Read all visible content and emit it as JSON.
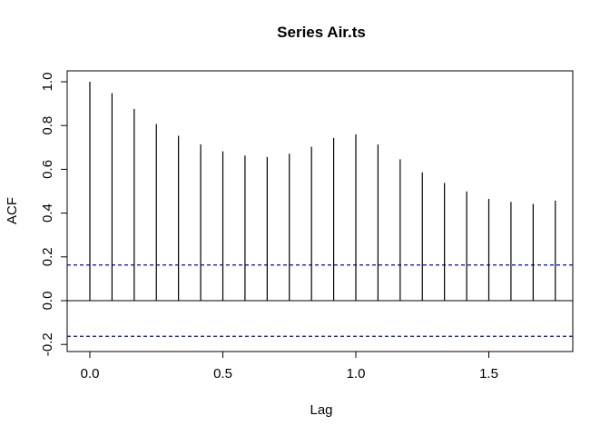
{
  "chart_data": {
    "type": "bar",
    "subtype": "acf-correlogram",
    "title": "Series  Air.ts",
    "xlabel": "Lag",
    "ylabel": "ACF",
    "xlim": [
      -0.07,
      1.82
    ],
    "ylim": [
      -0.2,
      1.0
    ],
    "x_ticks": [
      0.0,
      0.5,
      1.0,
      1.5
    ],
    "x_tick_labels": [
      "0.0",
      "0.5",
      "1.0",
      "1.5"
    ],
    "y_ticks": [
      -0.2,
      0.0,
      0.2,
      0.4,
      0.6,
      0.8,
      1.0
    ],
    "y_tick_labels": [
      "-0.2",
      "0.0",
      "0.2",
      "0.4",
      "0.6",
      "0.8",
      "1.0"
    ],
    "lags": [
      0.0,
      0.0833,
      0.1667,
      0.25,
      0.3333,
      0.4167,
      0.5,
      0.5833,
      0.6667,
      0.75,
      0.8333,
      0.9167,
      1.0,
      1.0833,
      1.1667,
      1.25,
      1.3333,
      1.4167,
      1.5,
      1.5833,
      1.6667,
      1.75
    ],
    "values": [
      1.0,
      0.948,
      0.876,
      0.807,
      0.753,
      0.714,
      0.682,
      0.663,
      0.656,
      0.671,
      0.703,
      0.743,
      0.76,
      0.713,
      0.646,
      0.586,
      0.538,
      0.499,
      0.465,
      0.451,
      0.442,
      0.457
    ],
    "confidence_bound": 0.163,
    "colors": {
      "spike": "#000000",
      "zero_line": "#000000",
      "confidence": "#0000cc",
      "frame": "#000000"
    },
    "grid": false,
    "legend": "none"
  }
}
